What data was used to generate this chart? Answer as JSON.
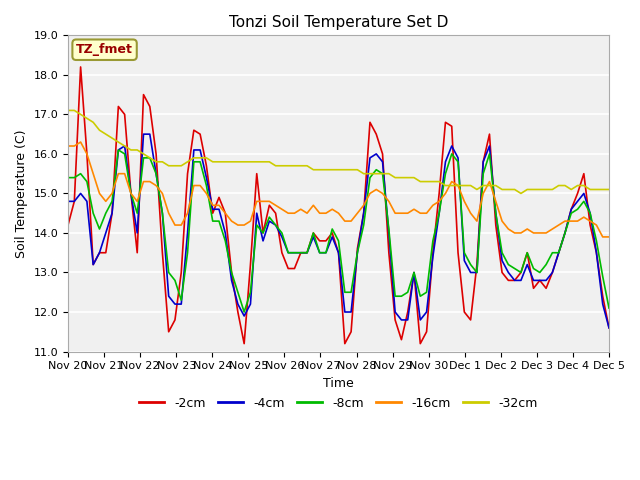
{
  "title": "Tonzi Soil Temperature Set D",
  "xlabel": "Time",
  "ylabel": "Soil Temperature (C)",
  "ylim": [
    11.0,
    19.0
  ],
  "yticks": [
    11.0,
    12.0,
    13.0,
    14.0,
    15.0,
    16.0,
    17.0,
    18.0,
    19.0
  ],
  "bg_color": "#e8e8e8",
  "plot_bg": "#f0f0f0",
  "annotation_text": "TZ_fmet",
  "annotation_color": "#990000",
  "annotation_bg": "#ffffcc",
  "annotation_border": "#999933",
  "series": {
    "-2cm": {
      "color": "#dd0000",
      "lw": 1.2
    },
    "-4cm": {
      "color": "#0000cc",
      "lw": 1.2
    },
    "-8cm": {
      "color": "#00bb00",
      "lw": 1.2
    },
    "-16cm": {
      "color": "#ff8800",
      "lw": 1.2
    },
    "-32cm": {
      "color": "#cccc00",
      "lw": 1.2
    }
  },
  "xtick_labels": [
    "Nov 20",
    "Nov 21",
    "Nov 22",
    "Nov 23",
    "Nov 24",
    "Nov 25",
    "Nov 26",
    "Nov 27",
    "Nov 28",
    "Nov 29",
    "Nov 30",
    "Dec 1",
    "Dec 2",
    "Dec 3",
    "Dec 4",
    "Dec 5"
  ],
  "data_2cm": [
    14.2,
    14.8,
    18.2,
    16.0,
    13.2,
    13.5,
    13.5,
    14.5,
    17.2,
    17.0,
    15.0,
    13.5,
    17.5,
    17.2,
    16.0,
    13.5,
    11.5,
    11.8,
    13.0,
    15.5,
    16.6,
    16.5,
    15.7,
    14.5,
    14.9,
    14.5,
    13.0,
    12.0,
    11.2,
    13.2,
    15.5,
    14.0,
    14.7,
    14.5,
    13.5,
    13.1,
    13.1,
    13.5,
    13.5,
    14.0,
    13.8,
    13.8,
    14.0,
    13.5,
    11.2,
    11.5,
    13.6,
    14.5,
    16.8,
    16.5,
    16.0,
    13.5,
    11.8,
    11.3,
    12.0,
    13.0,
    11.2,
    11.5,
    13.5,
    15.0,
    16.8,
    16.7,
    13.5,
    12.0,
    11.8,
    13.2,
    15.8,
    16.5,
    14.2,
    13.0,
    12.8,
    12.8,
    13.0,
    13.5,
    12.6,
    12.8,
    12.6,
    13.0,
    13.5,
    14.0,
    14.6,
    15.0,
    15.5,
    14.2,
    13.5,
    12.4,
    11.6
  ],
  "data_4cm": [
    14.8,
    14.8,
    15.0,
    14.8,
    13.2,
    13.5,
    14.0,
    14.5,
    16.1,
    16.2,
    15.0,
    14.0,
    16.5,
    16.5,
    15.5,
    14.5,
    12.4,
    12.2,
    12.2,
    14.0,
    16.1,
    16.1,
    15.4,
    14.6,
    14.6,
    14.0,
    12.8,
    12.2,
    11.9,
    12.2,
    14.5,
    13.8,
    14.3,
    14.2,
    13.9,
    13.5,
    13.5,
    13.5,
    13.5,
    13.9,
    13.5,
    13.5,
    13.9,
    13.5,
    12.0,
    12.0,
    13.5,
    14.5,
    15.9,
    16.0,
    15.8,
    14.0,
    12.0,
    11.8,
    11.8,
    13.0,
    11.8,
    12.0,
    13.4,
    14.5,
    15.8,
    16.2,
    15.9,
    13.3,
    13.0,
    13.0,
    15.8,
    16.2,
    14.5,
    13.3,
    13.0,
    12.8,
    12.8,
    13.2,
    12.8,
    12.8,
    12.8,
    13.0,
    13.5,
    14.0,
    14.6,
    14.8,
    15.0,
    14.5,
    13.5,
    12.2,
    11.6
  ],
  "data_8cm": [
    15.4,
    15.4,
    15.5,
    15.3,
    14.5,
    14.1,
    14.5,
    14.8,
    16.1,
    16.0,
    15.0,
    14.5,
    15.9,
    15.9,
    15.5,
    14.5,
    13.0,
    12.8,
    12.3,
    13.5,
    15.8,
    15.8,
    15.2,
    14.3,
    14.3,
    13.8,
    13.0,
    12.5,
    12.0,
    12.5,
    14.2,
    14.0,
    14.4,
    14.2,
    14.0,
    13.5,
    13.5,
    13.5,
    13.5,
    14.0,
    13.5,
    13.5,
    14.1,
    13.8,
    12.5,
    12.5,
    13.5,
    14.2,
    15.4,
    15.6,
    15.5,
    14.1,
    12.4,
    12.4,
    12.5,
    13.0,
    12.4,
    12.5,
    13.8,
    14.5,
    15.5,
    16.0,
    15.8,
    13.5,
    13.2,
    13.0,
    15.5,
    16.0,
    14.5,
    13.5,
    13.2,
    13.1,
    13.0,
    13.5,
    13.1,
    13.0,
    13.2,
    13.5,
    13.5,
    14.0,
    14.5,
    14.6,
    14.8,
    14.5,
    13.8,
    12.9,
    12.1
  ],
  "data_16cm": [
    16.2,
    16.2,
    16.3,
    16.0,
    15.5,
    15.0,
    14.8,
    15.0,
    15.5,
    15.5,
    15.0,
    14.8,
    15.3,
    15.3,
    15.2,
    15.0,
    14.5,
    14.2,
    14.2,
    14.5,
    15.2,
    15.2,
    15.0,
    14.7,
    14.7,
    14.5,
    14.3,
    14.2,
    14.2,
    14.3,
    14.8,
    14.8,
    14.8,
    14.7,
    14.6,
    14.5,
    14.5,
    14.6,
    14.5,
    14.7,
    14.5,
    14.5,
    14.6,
    14.5,
    14.3,
    14.3,
    14.5,
    14.7,
    15.0,
    15.1,
    15.0,
    14.8,
    14.5,
    14.5,
    14.5,
    14.6,
    14.5,
    14.5,
    14.7,
    14.8,
    15.0,
    15.3,
    15.2,
    14.8,
    14.5,
    14.3,
    15.0,
    15.3,
    14.8,
    14.3,
    14.1,
    14.0,
    14.0,
    14.1,
    14.0,
    14.0,
    14.0,
    14.1,
    14.2,
    14.3,
    14.3,
    14.3,
    14.4,
    14.3,
    14.2,
    13.9,
    13.9
  ],
  "data_32cm": [
    17.1,
    17.1,
    17.0,
    16.9,
    16.8,
    16.6,
    16.5,
    16.4,
    16.3,
    16.2,
    16.1,
    16.1,
    16.0,
    15.9,
    15.8,
    15.8,
    15.7,
    15.7,
    15.7,
    15.8,
    15.9,
    15.9,
    15.9,
    15.8,
    15.8,
    15.8,
    15.8,
    15.8,
    15.8,
    15.8,
    15.8,
    15.8,
    15.8,
    15.7,
    15.7,
    15.7,
    15.7,
    15.7,
    15.7,
    15.6,
    15.6,
    15.6,
    15.6,
    15.6,
    15.6,
    15.6,
    15.6,
    15.5,
    15.5,
    15.5,
    15.5,
    15.5,
    15.4,
    15.4,
    15.4,
    15.4,
    15.3,
    15.3,
    15.3,
    15.3,
    15.2,
    15.2,
    15.2,
    15.2,
    15.2,
    15.1,
    15.2,
    15.2,
    15.2,
    15.1,
    15.1,
    15.1,
    15.0,
    15.1,
    15.1,
    15.1,
    15.1,
    15.1,
    15.2,
    15.2,
    15.1,
    15.2,
    15.2,
    15.1,
    15.1,
    15.1,
    15.1
  ]
}
